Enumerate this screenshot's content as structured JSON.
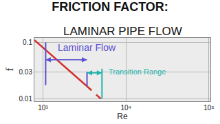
{
  "chart_data": {
    "type": "line",
    "title": "FRICTION FACTOR:",
    "subtitle": "LAMINAR PIPE FLOW",
    "x_label": "Re",
    "y_label": "f",
    "log": true,
    "grid": true,
    "xlim": [
      790,
      104000
    ],
    "ylim": [
      0.009,
      0.12
    ],
    "xticks": [
      {
        "value": 1000,
        "label": "10³"
      },
      {
        "value": 10000,
        "label": "10⁴"
      },
      {
        "value": 100000,
        "label": "10⁵"
      }
    ],
    "yticks": [
      0.01,
      0.03,
      0.1
    ],
    "series": [
      {
        "color": "#d0312d",
        "line_style": "solid",
        "x": [
          790,
          3400
        ],
        "values": [
          0.11,
          0.0166
        ]
      },
      {
        "color": "#d0312d",
        "line_style": "dashed",
        "x": [
          3400,
          4970
        ],
        "values": [
          0.0166,
          0.01
        ]
      }
    ],
    "ranges": [
      {
        "text": "Laminar Flow",
        "color": "#5a4fd0",
        "x": [
          1080,
          3400
        ],
        "arrow_y": 0.049,
        "text_x": 1445,
        "text_y": 0.08,
        "edges": [
          {
            "x": 1080,
            "y": [
              0.0174,
              0.1
            ]
          },
          {
            "x": 3400,
            "y": [
              0.0167,
              0.03
            ]
          }
        ]
      },
      {
        "text": "Transition Range",
        "color": "#1fb5ad",
        "x": [
          3400,
          5150
        ],
        "arrow_y": 0.0288,
        "text_x": 5970,
        "text_y": 0.03,
        "edges": [
          {
            "x": 5150,
            "y": [
              0.01,
              0.034
            ]
          }
        ]
      }
    ]
  }
}
